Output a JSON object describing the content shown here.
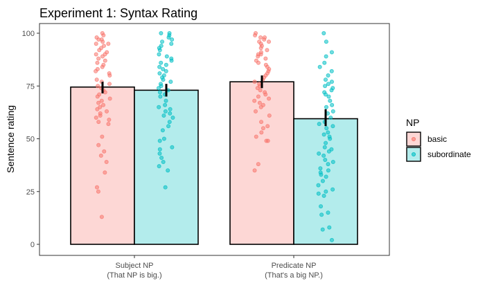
{
  "chart_data": {
    "type": "bar",
    "title": "Experiment 1: Syntax Rating",
    "ylabel": "Sentence rating",
    "xlabel": "",
    "ylim": [
      -5,
      105
    ],
    "yticks": [
      "0",
      "25",
      "50",
      "75",
      "100"
    ],
    "categories": [
      {
        "line1": "Subject NP",
        "line2": "(That NP is big.)"
      },
      {
        "line1": "Predicate NP",
        "line2": "(That's a big NP.)"
      }
    ],
    "legend": {
      "title": "NP",
      "position": "right"
    },
    "grid": false,
    "series": [
      {
        "name": "basic",
        "fill": "#fdd7d5",
        "point_color": "#f8766d",
        "values": [
          74.5,
          77
        ],
        "error": [
          [
            71.5,
            77.0
          ],
          [
            74.0,
            80.0
          ]
        ],
        "points": [
          [
            100,
            99,
            98,
            97,
            97,
            96,
            95,
            95,
            94,
            93,
            92,
            91,
            90,
            90,
            89,
            88,
            87,
            86,
            85,
            84,
            83,
            82,
            81,
            80,
            78,
            77,
            76,
            75,
            74,
            73,
            72,
            71,
            70,
            69,
            68,
            67,
            66,
            65,
            64,
            63,
            62,
            61,
            60,
            59,
            58,
            57,
            51,
            47,
            44,
            42,
            39,
            34,
            27,
            25,
            13
          ],
          [
            100,
            99,
            98,
            98,
            97,
            96,
            96,
            95,
            94,
            93,
            92,
            91,
            90,
            90,
            89,
            88,
            87,
            86,
            85,
            84,
            83,
            82,
            81,
            80,
            79,
            78,
            77,
            76,
            75,
            74,
            73,
            72,
            71,
            70,
            69,
            68,
            67,
            66,
            65,
            63,
            61,
            58,
            56,
            55,
            53,
            51,
            49,
            49,
            38,
            35
          ]
        ]
      },
      {
        "name": "subordinate",
        "fill": "#b3ecec",
        "point_color": "#00bfc4",
        "values": [
          73,
          59.5
        ],
        "error": [
          [
            70.0,
            76.0
          ],
          [
            56.0,
            64.0
          ]
        ],
        "points": [
          [
            100,
            100,
            99,
            98,
            97,
            96,
            95,
            94,
            93,
            92,
            90,
            89,
            88,
            87,
            86,
            85,
            84,
            83,
            82,
            81,
            80,
            79,
            78,
            77,
            76,
            75,
            74,
            73,
            72,
            71,
            70,
            68,
            66,
            65,
            64,
            63,
            62,
            61,
            60,
            58,
            56,
            54,
            50,
            49,
            46,
            45,
            43,
            41,
            39,
            37,
            35,
            27
          ],
          [
            100,
            96,
            91,
            89,
            86,
            84,
            82,
            80,
            78,
            77,
            76,
            75,
            74,
            73,
            72,
            71,
            70,
            68,
            66,
            65,
            63,
            62,
            60,
            58,
            57,
            56,
            55,
            53,
            52,
            51,
            50,
            48,
            46,
            45,
            44,
            43,
            42,
            40,
            39,
            38,
            36,
            35,
            34,
            33,
            32,
            30,
            28,
            26,
            25,
            24,
            23,
            18,
            15,
            14,
            8,
            7,
            2
          ]
        ]
      }
    ]
  }
}
